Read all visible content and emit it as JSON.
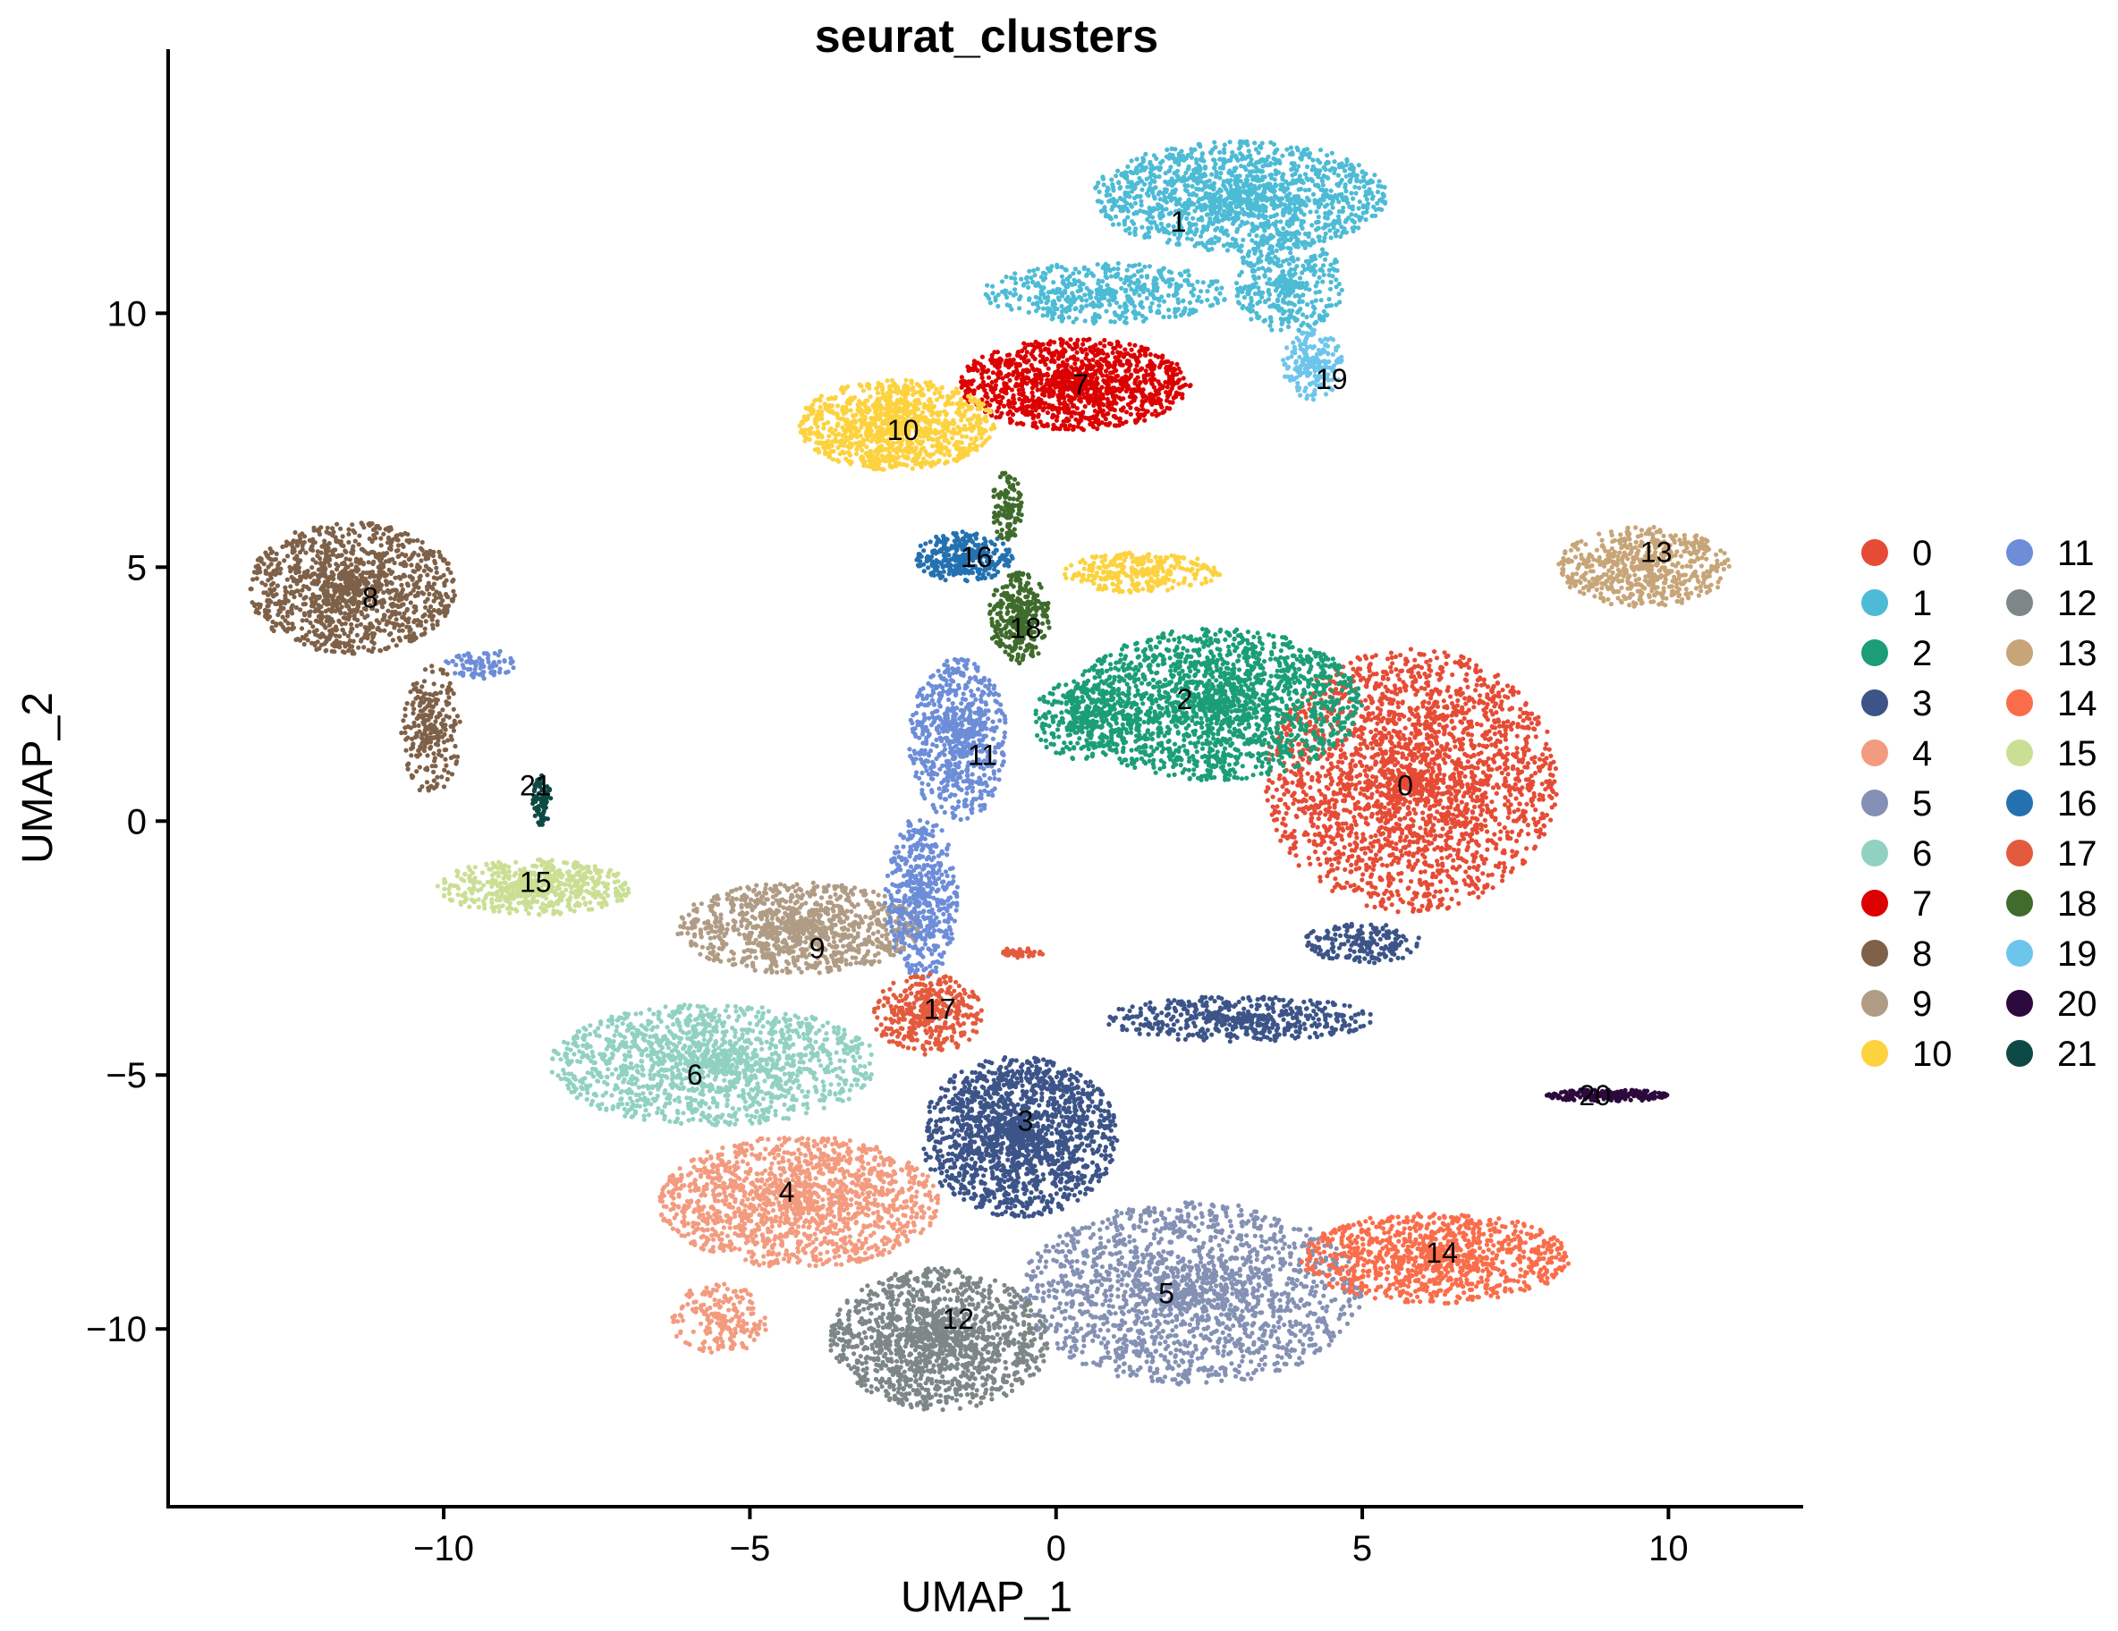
{
  "chart_data": {
    "type": "scatter",
    "title": "seurat_clusters",
    "xlabel": "UMAP_1",
    "ylabel": "UMAP_2",
    "xlim": [
      -14.5,
      12.2
    ],
    "ylim": [
      -13.5,
      15.2
    ],
    "xticks": [
      -10,
      -5,
      0,
      5,
      10
    ],
    "yticks": [
      10,
      5,
      0,
      -5,
      -10
    ],
    "xtick_labels": [
      "−10",
      "−5",
      "0",
      "5",
      "10"
    ],
    "ytick_labels": [
      "10",
      "5",
      "0",
      "−5",
      "−10"
    ],
    "grid": false,
    "legend_position": "right",
    "series": [
      {
        "name": "0",
        "color": "#E64B35",
        "label_x": 5.7,
        "label_y": 0.7,
        "blobs": [
          {
            "cx": 5.8,
            "cy": 0.8,
            "rx": 2.4,
            "ry": 2.6,
            "n": 2400
          }
        ]
      },
      {
        "name": "1",
        "color": "#4DBBD5",
        "label_x": 2.0,
        "label_y": 11.8,
        "blobs": [
          {
            "cx": 3.0,
            "cy": 12.3,
            "rx": 2.4,
            "ry": 1.1,
            "n": 1400
          },
          {
            "cx": 3.8,
            "cy": 10.6,
            "rx": 0.9,
            "ry": 1.0,
            "n": 400
          },
          {
            "cx": 0.8,
            "cy": 10.4,
            "rx": 2.0,
            "ry": 0.6,
            "n": 500
          }
        ]
      },
      {
        "name": "2",
        "color": "#1B9E77",
        "label_x": 2.1,
        "label_y": 2.4,
        "blobs": [
          {
            "cx": 2.6,
            "cy": 2.3,
            "rx": 2.4,
            "ry": 1.5,
            "n": 1800
          },
          {
            "cx": 0.5,
            "cy": 2.0,
            "rx": 0.9,
            "ry": 0.8,
            "n": 300
          }
        ]
      },
      {
        "name": "3",
        "color": "#3C5488",
        "label_x": -0.5,
        "label_y": -5.9,
        "blobs": [
          {
            "cx": -0.6,
            "cy": -6.2,
            "rx": 1.6,
            "ry": 1.6,
            "n": 1600
          },
          {
            "cx": 3.0,
            "cy": -3.9,
            "rx": 2.2,
            "ry": 0.45,
            "n": 500
          },
          {
            "cx": 5.0,
            "cy": -2.4,
            "rx": 1.0,
            "ry": 0.4,
            "n": 200
          }
        ]
      },
      {
        "name": "4",
        "color": "#F39B7F",
        "label_x": -4.4,
        "label_y": -7.3,
        "blobs": [
          {
            "cx": -4.2,
            "cy": -7.5,
            "rx": 2.3,
            "ry": 1.3,
            "n": 1500
          },
          {
            "cx": -5.5,
            "cy": -9.8,
            "rx": 0.8,
            "ry": 0.7,
            "n": 200
          }
        ]
      },
      {
        "name": "5",
        "color": "#8491B4",
        "label_x": 1.8,
        "label_y": -9.3,
        "blobs": [
          {
            "cx": 2.2,
            "cy": -9.3,
            "rx": 2.8,
            "ry": 1.8,
            "n": 1800
          }
        ]
      },
      {
        "name": "6",
        "color": "#91D1C2",
        "label_x": -5.9,
        "label_y": -5.0,
        "blobs": [
          {
            "cx": -5.6,
            "cy": -4.8,
            "rx": 2.7,
            "ry": 1.2,
            "n": 1500
          }
        ]
      },
      {
        "name": "7",
        "color": "#DC0000",
        "label_x": 0.4,
        "label_y": 8.6,
        "blobs": [
          {
            "cx": 0.3,
            "cy": 8.6,
            "rx": 1.9,
            "ry": 0.9,
            "n": 1200
          }
        ]
      },
      {
        "name": "8",
        "color": "#7E6148",
        "label_x": -11.2,
        "label_y": 4.4,
        "blobs": [
          {
            "cx": -11.5,
            "cy": 4.6,
            "rx": 1.7,
            "ry": 1.3,
            "n": 1200
          },
          {
            "cx": -10.2,
            "cy": 1.8,
            "rx": 0.5,
            "ry": 1.3,
            "n": 250
          }
        ]
      },
      {
        "name": "9",
        "color": "#B09C85",
        "label_x": -3.9,
        "label_y": -2.5,
        "blobs": [
          {
            "cx": -4.2,
            "cy": -2.1,
            "rx": 2.0,
            "ry": 0.9,
            "n": 1000
          }
        ]
      },
      {
        "name": "10",
        "color": "#FDD23F",
        "label_x": -2.5,
        "label_y": 7.7,
        "blobs": [
          {
            "cx": -2.6,
            "cy": 7.8,
            "rx": 1.6,
            "ry": 0.9,
            "n": 1100
          },
          {
            "cx": 1.4,
            "cy": 4.9,
            "rx": 1.3,
            "ry": 0.4,
            "n": 300
          }
        ]
      },
      {
        "name": "11",
        "color": "#6D8DD8",
        "label_x": -1.2,
        "label_y": 1.3,
        "blobs": [
          {
            "cx": -1.6,
            "cy": 1.6,
            "rx": 0.8,
            "ry": 1.6,
            "n": 700
          },
          {
            "cx": -2.2,
            "cy": -1.5,
            "rx": 0.6,
            "ry": 1.6,
            "n": 500
          },
          {
            "cx": -9.4,
            "cy": 3.1,
            "rx": 0.6,
            "ry": 0.3,
            "n": 80
          }
        ]
      },
      {
        "name": "12",
        "color": "#7D8787",
        "label_x": -1.6,
        "label_y": -9.8,
        "blobs": [
          {
            "cx": -1.9,
            "cy": -10.2,
            "rx": 1.8,
            "ry": 1.4,
            "n": 1400
          }
        ]
      },
      {
        "name": "13",
        "color": "#C7A578",
        "label_x": 9.8,
        "label_y": 5.3,
        "blobs": [
          {
            "cx": 9.6,
            "cy": 5.0,
            "rx": 1.4,
            "ry": 0.8,
            "n": 600
          }
        ]
      },
      {
        "name": "14",
        "color": "#FA6D4A",
        "label_x": 6.3,
        "label_y": -8.5,
        "blobs": [
          {
            "cx": 6.2,
            "cy": -8.6,
            "rx": 2.2,
            "ry": 0.9,
            "n": 1000
          }
        ]
      },
      {
        "name": "15",
        "color": "#CADF94",
        "label_x": -8.5,
        "label_y": -1.2,
        "blobs": [
          {
            "cx": -8.5,
            "cy": -1.3,
            "rx": 1.6,
            "ry": 0.55,
            "n": 600
          }
        ]
      },
      {
        "name": "16",
        "color": "#2471B0",
        "label_x": -1.3,
        "label_y": 5.2,
        "blobs": [
          {
            "cx": -1.5,
            "cy": 5.2,
            "rx": 0.8,
            "ry": 0.5,
            "n": 350
          }
        ]
      },
      {
        "name": "17",
        "color": "#E45A3D",
        "label_x": -1.9,
        "label_y": -3.7,
        "blobs": [
          {
            "cx": -2.1,
            "cy": -3.8,
            "rx": 0.9,
            "ry": 0.8,
            "n": 400
          },
          {
            "cx": -0.6,
            "cy": -2.6,
            "rx": 0.4,
            "ry": 0.1,
            "n": 40
          }
        ]
      },
      {
        "name": "18",
        "color": "#3F6B2C",
        "label_x": -0.5,
        "label_y": 3.8,
        "blobs": [
          {
            "cx": -0.6,
            "cy": 4.0,
            "rx": 0.5,
            "ry": 0.9,
            "n": 350
          },
          {
            "cx": -0.8,
            "cy": 6.2,
            "rx": 0.25,
            "ry": 0.7,
            "n": 120
          }
        ]
      },
      {
        "name": "19",
        "color": "#6EC5EB",
        "label_x": 4.5,
        "label_y": 8.7,
        "blobs": [
          {
            "cx": 4.2,
            "cy": 9.0,
            "rx": 0.5,
            "ry": 0.7,
            "n": 200
          }
        ]
      },
      {
        "name": "20",
        "color": "#2D0A3D",
        "label_x": 8.8,
        "label_y": -5.4,
        "blobs": [
          {
            "cx": 9.0,
            "cy": -5.4,
            "rx": 1.0,
            "ry": 0.12,
            "n": 220
          }
        ]
      },
      {
        "name": "21",
        "color": "#0E4A45",
        "label_x": -8.5,
        "label_y": 0.7,
        "blobs": [
          {
            "cx": -8.4,
            "cy": 0.4,
            "rx": 0.15,
            "ry": 0.5,
            "n": 80
          }
        ]
      }
    ]
  }
}
